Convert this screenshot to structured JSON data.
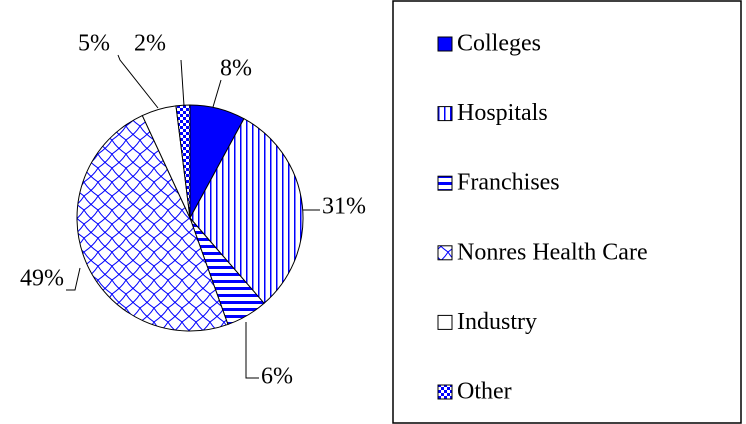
{
  "chart_data": {
    "type": "pie",
    "categories": [
      "Colleges",
      "Hospitals",
      "Franchises",
      "Nonres Health Care",
      "Industry",
      "Other"
    ],
    "values": [
      8,
      31,
      6,
      49,
      5,
      2
    ],
    "value_labels": [
      "8%",
      "31%",
      "6%",
      "49%",
      "5%",
      "2%"
    ],
    "colors": [
      "#0000ff",
      "#0000ff",
      "#0000ff",
      "#0000ff",
      "#000000",
      "#0000ff"
    ],
    "legend": "right"
  }
}
